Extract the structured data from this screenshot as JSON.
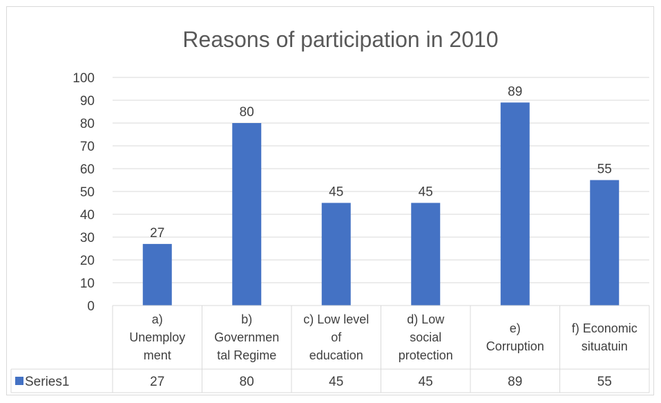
{
  "chart_data": {
    "type": "bar",
    "title": "Reasons of participation in 2010",
    "categories": [
      [
        "a)",
        "Unemploy",
        "ment"
      ],
      [
        "b)",
        "Governmen",
        "tal Regime"
      ],
      [
        "c) Low level",
        "of",
        "education"
      ],
      [
        "d) Low",
        "social",
        "protection"
      ],
      [
        "e)",
        "Corruption"
      ],
      [
        "f) Economic",
        "situatuin"
      ]
    ],
    "series": [
      {
        "name": "Series1",
        "values": [
          27,
          80,
          45,
          45,
          89,
          55
        ],
        "color": "#4472c4"
      }
    ],
    "ylim": [
      0,
      100
    ],
    "yticks": [
      0,
      10,
      20,
      30,
      40,
      50,
      60,
      70,
      80,
      90,
      100
    ],
    "grid": true,
    "data_labels": true,
    "data_table": true
  }
}
